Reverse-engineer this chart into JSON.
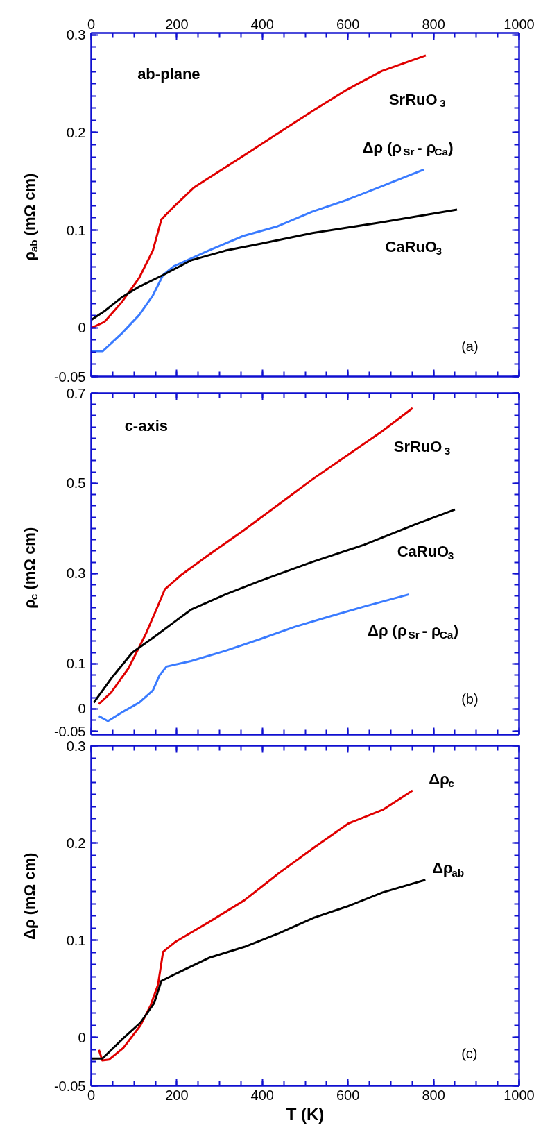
{
  "chart_data": [
    {
      "type": "line",
      "ylabel": "ρ$_{ab}$ (mΩ cm)",
      "annotations": [
        "ab-plane",
        "(a)"
      ],
      "xlim": [
        0,
        1000
      ],
      "xticks": [
        0,
        200,
        400,
        600,
        800,
        1000
      ],
      "x2lim": [
        0,
        1000
      ],
      "x2ticks": [
        0,
        200,
        400,
        600,
        800,
        1000
      ],
      "ylim": [
        -0.05,
        0.302
      ],
      "yticks": [
        -0.05,
        0,
        0.1,
        0.2,
        0.3
      ],
      "tick_labels": "y",
      "grid": false,
      "series": [
        {
          "name": "SrRuO$_{3}$",
          "color": "#e00000",
          "x": [
            2,
            31,
            71,
            112,
            144,
            164,
            193,
            241,
            355,
            436,
            517,
            598,
            679,
            782
          ],
          "values": [
            0.0,
            0.006,
            0.026,
            0.051,
            0.079,
            0.111,
            0.124,
            0.144,
            0.176,
            0.199,
            0.222,
            0.244,
            0.263,
            0.279
          ]
        },
        {
          "name": "Δρ  (ρ$_{Sr}$- ρ$_{Ca}$)",
          "color": "#3a7bff",
          "x": [
            0,
            27,
            71,
            112,
            144,
            168,
            193,
            274,
            355,
            436,
            517,
            598,
            679,
            777
          ],
          "values": [
            -0.024,
            -0.024,
            -0.006,
            0.013,
            0.033,
            0.054,
            0.063,
            0.079,
            0.094,
            0.104,
            0.119,
            0.131,
            0.145,
            0.162
          ]
        },
        {
          "name": "CaRuO$_{3}$",
          "color": "#000000",
          "x": [
            0,
            31,
            71,
            112,
            168,
            233,
            314,
            395,
            517,
            679,
            855
          ],
          "values": [
            0.008,
            0.017,
            0.031,
            0.042,
            0.054,
            0.069,
            0.079,
            0.086,
            0.097,
            0.108,
            0.121
          ]
        }
      ]
    },
    {
      "type": "line",
      "ylabel": "ρ$_{c}$ (mΩ cm)",
      "annotations": [
        "c-axis",
        "(b)"
      ],
      "xlim": [
        0,
        1000
      ],
      "xticks": [
        0,
        200,
        400,
        600,
        800,
        1000
      ],
      "ylim": [
        -0.057,
        0.7
      ],
      "yticks": [
        -0.05,
        0,
        0.1,
        0.3,
        0.5,
        0.7
      ],
      "tick_labels": "y",
      "grid": false,
      "series": [
        {
          "name": "SrRuO$_{3}$",
          "color": "#e00000",
          "x": [
            18,
            47,
            87,
            128,
            152,
            172,
            209,
            274,
            355,
            436,
            517,
            598,
            679,
            751
          ],
          "values": [
            0.011,
            0.037,
            0.09,
            0.167,
            0.22,
            0.265,
            0.296,
            0.341,
            0.395,
            0.452,
            0.509,
            0.562,
            0.615,
            0.667
          ]
        },
        {
          "name": "CaRuO$_{3}$",
          "color": "#000000",
          "x": [
            6,
            47,
            96,
            152,
            233,
            314,
            395,
            517,
            638,
            760,
            850
          ],
          "values": [
            0.014,
            0.068,
            0.125,
            0.163,
            0.22,
            0.254,
            0.284,
            0.326,
            0.364,
            0.41,
            0.442
          ]
        },
        {
          "name": "Δρ  (ρ$_{Sr}$- ρ$_{Ca}$)",
          "color": "#3a7bff",
          "x": [
            18,
            39,
            71,
            112,
            144,
            160,
            176,
            233,
            314,
            395,
            476,
            557,
            638,
            743
          ],
          "values": [
            -0.016,
            -0.027,
            -0.008,
            0.014,
            0.041,
            0.075,
            0.094,
            0.106,
            0.129,
            0.155,
            0.182,
            0.205,
            0.227,
            0.254
          ]
        }
      ]
    },
    {
      "type": "line",
      "xlabel": "T (K)",
      "ylabel": "Δρ (mΩ cm)",
      "annotations": [
        "(c)"
      ],
      "xlim": [
        0,
        1000
      ],
      "xticks": [
        0,
        200,
        400,
        600,
        800,
        1000
      ],
      "ylim": [
        -0.05,
        0.3
      ],
      "yticks": [
        -0.05,
        0,
        0.1,
        0.2,
        0.3
      ],
      "grid": false,
      "series": [
        {
          "name": "Δρ$_{c}$",
          "color": "#e00000",
          "x": [
            18,
            26,
            42,
            75,
            115,
            139,
            156,
            168,
            196,
            277,
            358,
            439,
            520,
            601,
            681,
            751
          ],
          "values": [
            -0.013,
            -0.024,
            -0.023,
            -0.011,
            0.012,
            0.033,
            0.054,
            0.088,
            0.098,
            0.119,
            0.141,
            0.169,
            0.195,
            0.22,
            0.234,
            0.254
          ]
        },
        {
          "name": "Δρ$_{ab}$",
          "color": "#000000",
          "x": [
            0,
            26,
            75,
            115,
            147,
            164,
            196,
            277,
            358,
            439,
            520,
            601,
            681,
            781
          ],
          "values": [
            -0.022,
            -0.022,
            -0.001,
            0.015,
            0.035,
            0.058,
            0.065,
            0.082,
            0.093,
            0.107,
            0.123,
            0.135,
            0.149,
            0.162
          ]
        }
      ]
    }
  ]
}
